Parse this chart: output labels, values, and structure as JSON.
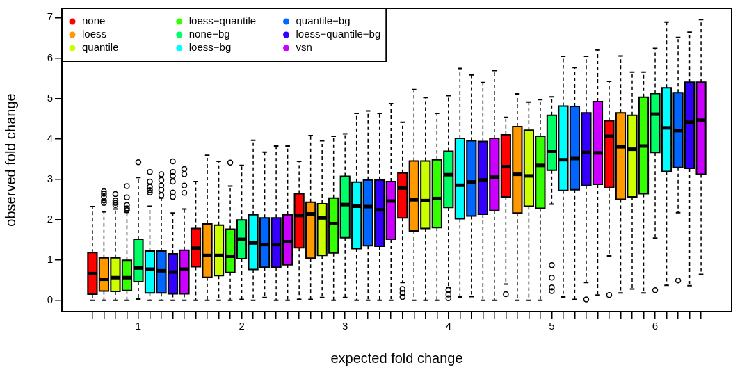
{
  "chart_data": {
    "type": "box",
    "xlabel": "expected fold change",
    "ylabel": "observed fold change",
    "ylim": [
      -0.28,
      7.23
    ],
    "yticks": [
      0,
      1,
      2,
      3,
      4,
      5,
      6,
      7
    ],
    "legend": "top left",
    "categories": [
      null,
      null,
      null,
      null,
      "1",
      null,
      null,
      null,
      null,
      null,
      null,
      null,
      null,
      "2",
      null,
      null,
      null,
      null,
      null,
      null,
      null,
      null,
      "3",
      null,
      null,
      null,
      null,
      null,
      null,
      null,
      null,
      "4",
      null,
      null,
      null,
      null,
      null,
      null,
      null,
      null,
      "5",
      null,
      null,
      null,
      null,
      null,
      null,
      null,
      null,
      "6",
      null,
      null,
      null,
      null
    ],
    "series": [
      {
        "name": "none",
        "color": "#ff0000",
        "boxes": [
          {
            "low": 0,
            "q1": 0.15,
            "median": 0.66,
            "q3": 1.18,
            "high": 2.32
          },
          null,
          null,
          null,
          null,
          null,
          null,
          null,
          null,
          {
            "low": 0,
            "q1": 0.83,
            "median": 1.29,
            "q3": 1.78,
            "high": 2.94
          },
          null,
          null,
          null,
          null,
          null,
          null,
          null,
          null,
          {
            "low": 0.02,
            "q1": 1.3,
            "median": 2.1,
            "q3": 2.64,
            "high": 3.44
          },
          null,
          null,
          null,
          null,
          null,
          null,
          null,
          null,
          {
            "low": 0.44,
            "q1": 2.04,
            "median": 2.78,
            "q3": 3.15,
            "high": 4.41,
            "outliers": [
              0.08,
              0.18,
              0.28
            ]
          },
          null,
          null,
          null,
          null,
          null,
          null,
          null,
          null,
          {
            "low": 0.4,
            "q1": 2.56,
            "median": 3.31,
            "q3": 4.1,
            "high": 4.53,
            "outliers": [
              0.15
            ]
          },
          null,
          null,
          null,
          null,
          null,
          null,
          null,
          null,
          {
            "low": 1.1,
            "q1": 2.79,
            "median": 4.06,
            "q3": 4.45,
            "high": 5.42,
            "outliers": [
              0.13
            ]
          },
          null,
          null,
          null,
          null,
          null,
          null,
          null,
          null
        ]
      },
      {
        "name": "loess",
        "color": "#ff9900",
        "boxes": [
          null,
          {
            "low": 0,
            "q1": 0.23,
            "median": 0.52,
            "q3": 1.05,
            "high": 2.19,
            "outliers": [
              2.41,
              2.47,
              2.56,
              2.64,
              2.7
            ]
          },
          null,
          null,
          null,
          null,
          null,
          null,
          null,
          null,
          {
            "low": 0,
            "q1": 0.57,
            "median": 1.11,
            "q3": 1.89,
            "high": 3.59
          },
          null,
          null,
          null,
          null,
          null,
          null,
          null,
          null,
          {
            "low": 0.02,
            "q1": 1.04,
            "median": 2.14,
            "q3": 2.43,
            "high": 4.08
          },
          null,
          null,
          null,
          null,
          null,
          null,
          null,
          null,
          {
            "low": 0,
            "q1": 1.72,
            "median": 2.49,
            "q3": 3.45,
            "high": 5.22
          },
          null,
          null,
          null,
          null,
          null,
          null,
          null,
          null,
          {
            "low": 0,
            "q1": 2.16,
            "median": 3.12,
            "q3": 4.3,
            "high": 5.11
          },
          null,
          null,
          null,
          null,
          null,
          null,
          null,
          null,
          {
            "low": 0.18,
            "q1": 2.5,
            "median": 3.8,
            "q3": 4.64,
            "high": 6.05
          },
          null,
          null,
          null,
          null,
          null,
          null,
          null
        ]
      },
      {
        "name": "quantile",
        "color": "#ccff00",
        "boxes": [
          null,
          null,
          {
            "low": 0,
            "q1": 0.22,
            "median": 0.56,
            "q3": 1.05,
            "high": 2.26,
            "outliers": [
              2.36,
              2.41,
              2.47,
              2.63
            ]
          },
          null,
          null,
          null,
          null,
          null,
          null,
          null,
          null,
          {
            "low": 0,
            "q1": 0.61,
            "median": 1.11,
            "q3": 1.86,
            "high": 3.44
          },
          null,
          null,
          null,
          null,
          null,
          null,
          null,
          null,
          {
            "low": 0.07,
            "q1": 1.11,
            "median": 2.04,
            "q3": 2.39,
            "high": 3.95
          },
          null,
          null,
          null,
          null,
          null,
          null,
          null,
          null,
          {
            "low": 0,
            "q1": 1.78,
            "median": 2.47,
            "q3": 3.45,
            "high": 5.02
          },
          null,
          null,
          null,
          null,
          null,
          null,
          null,
          null,
          {
            "low": 0,
            "q1": 2.33,
            "median": 3.08,
            "q3": 4.21,
            "high": 4.91
          },
          null,
          null,
          null,
          null,
          null,
          null,
          null,
          null,
          {
            "low": 0.28,
            "q1": 2.56,
            "median": 3.74,
            "q3": 4.58,
            "high": 5.65
          },
          null,
          null,
          null,
          null,
          null,
          null
        ]
      },
      {
        "name": "loess−quantile",
        "color": "#33ff00",
        "boxes": [
          null,
          null,
          null,
          {
            "low": 0,
            "q1": 0.24,
            "median": 0.56,
            "q3": 0.99,
            "high": 2.18,
            "outliers": [
              2.23,
              2.28,
              2.36,
              2.55,
              2.83
            ]
          },
          null,
          null,
          null,
          null,
          null,
          null,
          null,
          null,
          {
            "low": 0,
            "q1": 0.69,
            "median": 1.09,
            "q3": 1.76,
            "high": 2.83,
            "outliers": [
              3.41
            ]
          },
          null,
          null,
          null,
          null,
          null,
          null,
          null,
          null,
          {
            "low": 0,
            "q1": 1.17,
            "median": 1.9,
            "q3": 2.53,
            "high": 4.06
          },
          null,
          null,
          null,
          null,
          null,
          null,
          null,
          null,
          {
            "low": 0,
            "q1": 1.8,
            "median": 2.52,
            "q3": 3.48,
            "high": 4.63
          },
          null,
          null,
          null,
          null,
          null,
          null,
          null,
          null,
          {
            "low": 0,
            "q1": 2.28,
            "median": 3.34,
            "q3": 4.06,
            "high": 4.97
          },
          null,
          null,
          null,
          null,
          null,
          null,
          null,
          null,
          {
            "low": 0.18,
            "q1": 2.64,
            "median": 3.82,
            "q3": 5.03,
            "high": 5.65
          },
          null,
          null,
          null,
          null,
          null
        ]
      },
      {
        "name": "none−bg",
        "color": "#00ff66",
        "boxes": [
          null,
          null,
          null,
          null,
          {
            "low": 0.03,
            "q1": 0.46,
            "median": 0.8,
            "q3": 1.51,
            "high": 3.04,
            "outliers": [
              3.42
            ]
          },
          null,
          null,
          null,
          null,
          null,
          null,
          null,
          null,
          {
            "low": 0.02,
            "q1": 1.03,
            "median": 1.51,
            "q3": 1.99,
            "high": 3.34
          },
          null,
          null,
          null,
          null,
          null,
          null,
          null,
          null,
          {
            "low": 0.07,
            "q1": 1.55,
            "median": 2.37,
            "q3": 3.07,
            "high": 4.12
          },
          null,
          null,
          null,
          null,
          null,
          null,
          null,
          null,
          {
            "low": 0.32,
            "q1": 2.3,
            "median": 3.11,
            "q3": 3.69,
            "high": 5.07,
            "outliers": [
              0.05,
              0.14,
              0.26
            ]
          },
          null,
          null,
          null,
          null,
          null,
          null,
          null,
          null,
          {
            "low": 2.38,
            "q1": 3.22,
            "median": 3.69,
            "q3": 4.58,
            "high": 5.04,
            "outliers": [
              0.23,
              0.32,
              0.56,
              0.87
            ]
          },
          null,
          null,
          null,
          null,
          null,
          null,
          null,
          null,
          {
            "low": 1.54,
            "q1": 3.66,
            "median": 4.61,
            "q3": 5.12,
            "high": 6.24,
            "outliers": [
              0.25
            ]
          },
          null,
          null,
          null,
          null
        ]
      },
      {
        "name": "loess−bg",
        "color": "#00ffff",
        "boxes": [
          null,
          null,
          null,
          null,
          null,
          {
            "low": 0,
            "q1": 0.18,
            "median": 0.77,
            "q3": 1.22,
            "high": 2.33,
            "outliers": [
              2.67,
              2.73,
              2.81,
              2.94,
              3.18
            ]
          },
          null,
          null,
          null,
          null,
          null,
          null,
          null,
          null,
          {
            "low": 0,
            "q1": 0.76,
            "median": 1.42,
            "q3": 2.12,
            "high": 3.96
          },
          null,
          null,
          null,
          null,
          null,
          null,
          null,
          null,
          {
            "low": 0,
            "q1": 1.28,
            "median": 2.33,
            "q3": 2.93,
            "high": 4.63
          },
          null,
          null,
          null,
          null,
          null,
          null,
          null,
          null,
          {
            "low": 0.08,
            "q1": 2.02,
            "median": 2.85,
            "q3": 4.01,
            "high": 5.74
          },
          null,
          null,
          null,
          null,
          null,
          null,
          null,
          null,
          {
            "low": 0.08,
            "q1": 2.72,
            "median": 3.48,
            "q3": 4.81,
            "high": 6.04
          },
          null,
          null,
          null,
          null,
          null,
          null,
          null,
          null,
          {
            "low": 0.37,
            "q1": 3.19,
            "median": 4.27,
            "q3": 5.26,
            "high": 6.89
          },
          null,
          null,
          null
        ]
      },
      {
        "name": "quantile−bg",
        "color": "#0066ff",
        "boxes": [
          null,
          null,
          null,
          null,
          null,
          null,
          {
            "low": 0,
            "q1": 0.18,
            "median": 0.73,
            "q3": 1.22,
            "high": 2.53,
            "outliers": [
              2.6,
              2.73,
              2.84,
              2.98,
              3.12
            ]
          },
          null,
          null,
          null,
          null,
          null,
          null,
          null,
          null,
          {
            "low": 0.07,
            "q1": 0.82,
            "median": 1.38,
            "q3": 2.04,
            "high": 3.67
          },
          null,
          null,
          null,
          null,
          null,
          null,
          null,
          null,
          {
            "low": 0,
            "q1": 1.35,
            "median": 2.32,
            "q3": 2.98,
            "high": 4.69
          },
          null,
          null,
          null,
          null,
          null,
          null,
          null,
          null,
          {
            "low": 0.09,
            "q1": 2.09,
            "median": 2.93,
            "q3": 3.95,
            "high": 5.58
          },
          null,
          null,
          null,
          null,
          null,
          null,
          null,
          null,
          {
            "low": 0.02,
            "q1": 2.74,
            "median": 3.51,
            "q3": 4.8,
            "high": 5.76
          },
          null,
          null,
          null,
          null,
          null,
          null,
          null,
          null,
          {
            "low": 2.17,
            "q1": 3.29,
            "median": 4.2,
            "q3": 5.14,
            "high": 6.51,
            "outliers": [
              0.49
            ]
          },
          null,
          null
        ]
      },
      {
        "name": "loess−quantile−bg",
        "color": "#3300ff",
        "boxes": [
          null,
          null,
          null,
          null,
          null,
          null,
          null,
          {
            "low": 0,
            "q1": 0.16,
            "median": 0.7,
            "q3": 1.15,
            "high": 2.16,
            "outliers": [
              2.56,
              2.67,
              2.94,
              3.08,
              3.18,
              3.44
            ]
          },
          null,
          null,
          null,
          null,
          null,
          null,
          null,
          null,
          {
            "low": 0,
            "q1": 0.82,
            "median": 1.38,
            "q3": 2.04,
            "high": 3.82
          },
          null,
          null,
          null,
          null,
          null,
          null,
          null,
          null,
          {
            "low": 0,
            "q1": 1.34,
            "median": 2.24,
            "q3": 2.98,
            "high": 4.63
          },
          null,
          null,
          null,
          null,
          null,
          null,
          null,
          null,
          {
            "low": 0,
            "q1": 2.13,
            "median": 2.98,
            "q3": 3.93,
            "high": 5.39
          },
          null,
          null,
          null,
          null,
          null,
          null,
          null,
          null,
          {
            "low": 0.44,
            "q1": 2.84,
            "median": 3.66,
            "q3": 4.64,
            "high": 6.04,
            "outliers": [
              0.02
            ]
          },
          null,
          null,
          null,
          null,
          null,
          null,
          null,
          null,
          {
            "low": 0.36,
            "q1": 3.27,
            "median": 4.41,
            "q3": 5.4,
            "high": 6.64
          },
          null
        ]
      },
      {
        "name": "vsn",
        "color": "#cc00ff",
        "boxes": [
          null,
          null,
          null,
          null,
          null,
          null,
          null,
          null,
          {
            "low": 0,
            "q1": 0.16,
            "median": 0.77,
            "q3": 1.24,
            "high": 2.26,
            "outliers": [
              2.66,
              2.84,
              3.12,
              3.25
            ]
          },
          null,
          null,
          null,
          null,
          null,
          null,
          null,
          null,
          {
            "low": 0,
            "q1": 0.88,
            "median": 1.45,
            "q3": 2.12,
            "high": 3.82
          },
          null,
          null,
          null,
          null,
          null,
          null,
          null,
          null,
          {
            "low": 0,
            "q1": 1.51,
            "median": 2.46,
            "q3": 2.94,
            "high": 4.87
          },
          null,
          null,
          null,
          null,
          null,
          null,
          null,
          null,
          {
            "low": 0,
            "q1": 2.22,
            "median": 3.05,
            "q3": 4.01,
            "high": 5.69
          },
          null,
          null,
          null,
          null,
          null,
          null,
          null,
          null,
          {
            "low": 0.13,
            "q1": 2.87,
            "median": 3.65,
            "q3": 4.92,
            "high": 6.2
          },
          null,
          null,
          null,
          null,
          null,
          null,
          null,
          null,
          {
            "low": 0.64,
            "q1": 3.12,
            "median": 4.46,
            "q3": 5.4,
            "high": 6.95
          }
        ]
      }
    ]
  }
}
